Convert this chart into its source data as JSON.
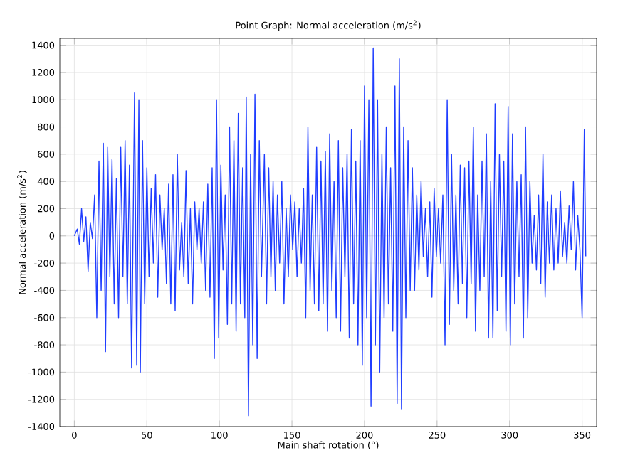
{
  "chart_data": {
    "type": "line",
    "title": "Point Graph: Normal acceleration (m/s$^{2}$)",
    "xlabel": "Main shaft rotation (°)",
    "ylabel": "Normal acceleration (m/s$^{2}$)",
    "xlim": [
      -10,
      360
    ],
    "xticks": [
      0,
      50,
      100,
      150,
      200,
      250,
      300,
      350
    ],
    "ylim": [
      -1400,
      1450
    ],
    "yticks": [
      -1400,
      -1200,
      -1000,
      -800,
      -600,
      -400,
      -200,
      0,
      200,
      400,
      600,
      800,
      1000,
      1200,
      1400
    ],
    "grid": true,
    "marker": "none",
    "line_style": "solid",
    "series": [
      {
        "color": "#1f3dff",
        "x": [
          0,
          2,
          3.5,
          5,
          6.5,
          8,
          9.5,
          11,
          12.5,
          14,
          15.5,
          17,
          18.5,
          20,
          21.5,
          23,
          24.5,
          26,
          27.5,
          29,
          30.5,
          32,
          33.5,
          35,
          36.5,
          38,
          39.5,
          41.5,
          43,
          44.5,
          45.5,
          47,
          48.5,
          50,
          51.5,
          53,
          54.5,
          56,
          57.5,
          59,
          60.5,
          62,
          63.5,
          65,
          66.5,
          68,
          69.5,
          71,
          72.5,
          74,
          75.5,
          77,
          78.5,
          80,
          81.5,
          83,
          84.5,
          86,
          87.5,
          89,
          90.5,
          92,
          93.5,
          95,
          96.5,
          98,
          99.5,
          101,
          102.5,
          104,
          105.5,
          107,
          108.5,
          110,
          111.5,
          113,
          114.5,
          116,
          117.5,
          118.5,
          120,
          121.5,
          123,
          124.5,
          126,
          127.5,
          129,
          131,
          132.5,
          134,
          135.5,
          137,
          138.5,
          140,
          141.5,
          143,
          144.5,
          146,
          147.5,
          149,
          150.5,
          152,
          153.5,
          155,
          156.5,
          158,
          159.5,
          161,
          162.5,
          164,
          165.5,
          167,
          168.5,
          170,
          171.5,
          173,
          174.5,
          176,
          177.5,
          179,
          180.5,
          182,
          183.5,
          185,
          186.5,
          188,
          189.5,
          191,
          192.5,
          194,
          195.5,
          197,
          198.5,
          200,
          201.5,
          203,
          204.5,
          206,
          207.5,
          209,
          210.5,
          212,
          213.5,
          215,
          216.5,
          218,
          219.5,
          221,
          222.5,
          224,
          225.5,
          227,
          228.5,
          230,
          231.5,
          233,
          234.5,
          236,
          237.5,
          239,
          240.5,
          242,
          243.5,
          245,
          246.5,
          248,
          249.5,
          251,
          252.5,
          254,
          255.5,
          257,
          258.5,
          260,
          261.5,
          263,
          264.5,
          266,
          267.5,
          269,
          270.5,
          272,
          273.5,
          275,
          276.5,
          278,
          279.5,
          281,
          282.5,
          284,
          285.5,
          287,
          288.5,
          290,
          291.5,
          293,
          294.5,
          296,
          297.5,
          299,
          300.5,
          302,
          303.5,
          305,
          306.5,
          308,
          309.5,
          311,
          312.5,
          314,
          315.5,
          317,
          318.5,
          320,
          321.5,
          323,
          324.5,
          326,
          327.5,
          329,
          330.5,
          332,
          333.5,
          335,
          336.5,
          338,
          339.5,
          341,
          342.5,
          344,
          345.5,
          347,
          348.5,
          350,
          351.5,
          352.5
        ],
        "values": [
          0,
          50,
          -60,
          200,
          -40,
          140,
          -260,
          100,
          -20,
          300,
          -600,
          550,
          -400,
          680,
          -850,
          650,
          -300,
          560,
          -500,
          420,
          -600,
          650,
          -300,
          700,
          -500,
          520,
          -970,
          1050,
          -950,
          1000,
          -1000,
          700,
          -500,
          500,
          -300,
          350,
          -200,
          450,
          -450,
          300,
          -100,
          200,
          -350,
          380,
          -500,
          450,
          -550,
          600,
          -250,
          100,
          -300,
          480,
          -350,
          200,
          -500,
          250,
          -100,
          200,
          -200,
          250,
          -400,
          380,
          -450,
          500,
          -900,
          1000,
          -750,
          520,
          -250,
          300,
          -650,
          800,
          -500,
          700,
          -700,
          900,
          -500,
          500,
          -600,
          1020,
          -1320,
          600,
          -800,
          1040,
          -900,
          700,
          -300,
          600,
          -500,
          500,
          -300,
          400,
          -400,
          300,
          -200,
          400,
          -500,
          200,
          -300,
          300,
          -100,
          250,
          -300,
          200,
          -200,
          350,
          -600,
          800,
          -400,
          300,
          -500,
          650,
          -550,
          550,
          -500,
          620,
          -700,
          750,
          -400,
          400,
          -600,
          700,
          -700,
          500,
          -300,
          600,
          -750,
          780,
          -500,
          550,
          -800,
          700,
          -950,
          1100,
          -600,
          1000,
          -1250,
          1380,
          -800,
          1000,
          -1000,
          600,
          -600,
          800,
          -500,
          500,
          -700,
          1100,
          -1230,
          1300,
          -1270,
          800,
          -600,
          700,
          -400,
          500,
          -400,
          300,
          -250,
          400,
          -150,
          200,
          -300,
          250,
          -450,
          350,
          -150,
          200,
          -200,
          300,
          -800,
          1000,
          -650,
          600,
          -400,
          300,
          -500,
          520,
          -350,
          500,
          -600,
          550,
          -350,
          800,
          -700,
          300,
          -400,
          550,
          -300,
          750,
          -750,
          400,
          -750,
          970,
          -550,
          600,
          -300,
          550,
          -700,
          950,
          -800,
          750,
          -500,
          400,
          -300,
          450,
          -750,
          800,
          -600,
          400,
          -200,
          150,
          -250,
          300,
          -350,
          600,
          -450,
          250,
          -200,
          300,
          -250,
          200,
          -200,
          330,
          -150,
          100,
          -200,
          220,
          -100,
          400,
          -250,
          150,
          -100,
          -600,
          780,
          -150
        ]
      }
    ]
  }
}
